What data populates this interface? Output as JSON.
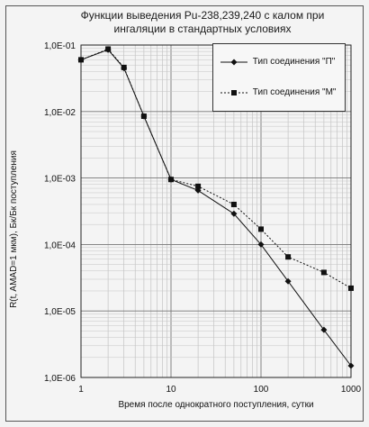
{
  "chart_data": {
    "type": "line",
    "title_lines": [
      "Функции выведения Pu-238,239,240 с калом при",
      "ингаляции в стандартных условиях"
    ],
    "xlabel": "Время после однократного поступления, сутки",
    "ylabel": "R(t, AMAD=1 мкм), Бк/Бк поступления",
    "x_scale": "log",
    "y_scale": "log",
    "xlim": [
      1,
      1000
    ],
    "ylim": [
      1e-06,
      0.1
    ],
    "x_tick_labels": [
      "1",
      "10",
      "100",
      "1000"
    ],
    "y_tick_labels": [
      "1,0E-06",
      "1,0E-05",
      "1,0E-04",
      "1,0E-03",
      "1,0E-02",
      "1,0E-01"
    ],
    "grid": true,
    "legend_position": "top-right",
    "series": [
      {
        "name": "Тип соединения  \"П\"",
        "marker": "diamond",
        "line_style": "solid",
        "points": [
          [
            1,
            0.06
          ],
          [
            2,
            0.085
          ],
          [
            3,
            0.045
          ],
          [
            5,
            0.0085
          ],
          [
            10,
            0.00095
          ],
          [
            20,
            0.00065
          ],
          [
            50,
            0.00029
          ],
          [
            100,
            0.0001
          ],
          [
            200,
            2.8e-05
          ],
          [
            500,
            5.2e-06
          ],
          [
            1000,
            1.5e-06
          ]
        ]
      },
      {
        "name": "Тип соединения  \"М\"",
        "marker": "square",
        "line_style": "dashed",
        "points": [
          [
            1,
            0.06
          ],
          [
            2,
            0.087
          ],
          [
            3,
            0.046
          ],
          [
            5,
            0.0085
          ],
          [
            10,
            0.00095
          ],
          [
            20,
            0.00075
          ],
          [
            50,
            0.0004
          ],
          [
            100,
            0.00017
          ],
          [
            200,
            6.5e-05
          ],
          [
            500,
            3.8e-05
          ],
          [
            1000,
            2.2e-05
          ]
        ]
      }
    ]
  }
}
